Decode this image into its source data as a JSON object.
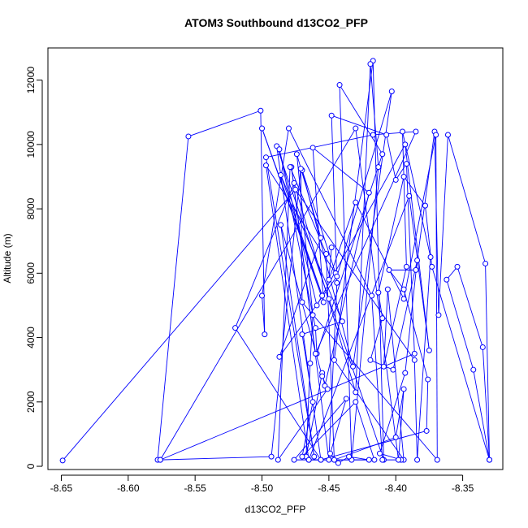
{
  "chart_data": {
    "type": "line",
    "title": "ATOM3 Southbound d13CO2_PFP",
    "xlabel": "d13CO2_PFP",
    "ylabel": "Altitude (m)",
    "xlim": [
      -8.66,
      -8.32
    ],
    "ylim": [
      -100,
      13000
    ],
    "x_ticks": [
      -8.65,
      -8.6,
      -8.55,
      -8.5,
      -8.45,
      -8.4,
      -8.35
    ],
    "x_tick_labels": [
      "-8.65",
      "-8.60",
      "-8.55",
      "-8.50",
      "-8.45",
      "-8.40",
      "-8.35"
    ],
    "y_ticks": [
      0,
      2000,
      4000,
      6000,
      8000,
      10000,
      12000
    ],
    "y_tick_labels": [
      "0",
      "2000",
      "4000",
      "6000",
      "8000",
      "10000",
      "12000"
    ],
    "grid": false,
    "series": [
      {
        "color": "#0000ff",
        "marker": "open-circle",
        "points": [
          [
            -8.649,
            180
          ],
          [
            -8.475,
            8600
          ],
          [
            -8.386,
            3300
          ],
          [
            -8.384,
            200
          ],
          [
            -8.374,
            6500
          ],
          [
            -8.395,
            10400
          ],
          [
            -8.392,
            6200
          ],
          [
            -8.409,
            3100
          ],
          [
            -8.406,
            5500
          ],
          [
            -8.394,
            200
          ],
          [
            -8.446,
            3300
          ],
          [
            -8.417,
            12600
          ],
          [
            -8.409,
            200
          ],
          [
            -8.45,
            5200
          ],
          [
            -8.489,
            9950
          ],
          [
            -8.456,
            200
          ],
          [
            -8.52,
            4300
          ],
          [
            -8.476,
            8800
          ],
          [
            -8.43,
            2300
          ],
          [
            -8.419,
            12500
          ],
          [
            -8.413,
            9300
          ],
          [
            -8.433,
            200
          ],
          [
            -8.442,
            11850
          ],
          [
            -8.41,
            9700
          ],
          [
            -8.459,
            3500
          ],
          [
            -8.46,
            4300
          ],
          [
            -8.487,
            9850
          ],
          [
            -8.459,
            5000
          ],
          [
            -8.393,
            10000
          ],
          [
            -8.375,
            3600
          ],
          [
            -8.39,
            8400
          ],
          [
            -8.465,
            200
          ],
          [
            -8.497,
            9350
          ],
          [
            -8.445,
            6000
          ],
          [
            -8.47,
            9200
          ],
          [
            -8.432,
            3100
          ],
          [
            -8.403,
            11650
          ],
          [
            -8.444,
            5900
          ],
          [
            -8.487,
            3400
          ],
          [
            -8.456,
            7100
          ],
          [
            -8.474,
            9700
          ],
          [
            -8.462,
            4700
          ],
          [
            -8.464,
            3200
          ],
          [
            -8.467,
            300
          ],
          [
            -8.455,
            2900
          ],
          [
            -8.453,
            2500
          ],
          [
            -8.42,
            8500
          ],
          [
            -8.462,
            9900
          ],
          [
            -8.454,
            5100
          ],
          [
            -8.5,
            10500
          ],
          [
            -8.455,
            5300
          ],
          [
            -8.486,
            9050
          ],
          [
            -8.44,
            4500
          ],
          [
            -8.47,
            4100
          ],
          [
            -8.462,
            2000
          ],
          [
            -8.47,
            300
          ],
          [
            -8.43,
            2000
          ],
          [
            -8.416,
            200
          ],
          [
            -8.476,
            200
          ],
          [
            -8.437,
            2100
          ],
          [
            -8.449,
            400
          ],
          [
            -8.443,
            100
          ],
          [
            -8.435,
            300
          ],
          [
            -8.42,
            200
          ],
          [
            -8.465,
            200
          ],
          [
            -8.456,
            200
          ],
          [
            -8.377,
            1100
          ],
          [
            -8.376,
            2700
          ],
          [
            -8.394,
            5500
          ],
          [
            -8.405,
            6100
          ],
          [
            -8.385,
            6100
          ],
          [
            -8.371,
            10400
          ],
          [
            -8.368,
            4700
          ],
          [
            -8.361,
            10300
          ],
          [
            -8.333,
            6300
          ],
          [
            -8.33,
            200
          ],
          [
            -8.335,
            3700
          ],
          [
            -8.354,
            6200
          ],
          [
            -8.362,
            5800
          ],
          [
            -8.342,
            3000
          ],
          [
            -8.33,
            200
          ],
          [
            -8.373,
            6200
          ],
          [
            -8.378,
            8100
          ],
          [
            -8.394,
            9000
          ],
          [
            -8.413,
            5400
          ],
          [
            -8.41,
            4600
          ],
          [
            -8.419,
            3300
          ],
          [
            -8.402,
            3000
          ],
          [
            -8.384,
            6400
          ],
          [
            -8.393,
            2900
          ],
          [
            -8.412,
            400
          ],
          [
            -8.396,
            200
          ],
          [
            -8.41,
            200
          ],
          [
            -8.418,
            5300
          ],
          [
            -8.48,
            10500
          ],
          [
            -8.5,
            5300
          ],
          [
            -8.498,
            4100
          ],
          [
            -8.501,
            11050
          ],
          [
            -8.555,
            10250
          ],
          [
            -8.578,
            200
          ],
          [
            -8.576,
            200
          ],
          [
            -8.386,
            3500
          ],
          [
            -8.392,
            9400
          ],
          [
            -8.4,
            8900
          ],
          [
            -8.407,
            10300
          ],
          [
            -8.448,
            10900
          ],
          [
            -8.444,
            5700
          ],
          [
            -8.45,
            200
          ],
          [
            -8.478,
            9300
          ],
          [
            -8.46,
            3500
          ],
          [
            -8.385,
            10400
          ],
          [
            -8.417,
            10300
          ],
          [
            -8.497,
            9600
          ],
          [
            -8.461,
            300
          ],
          [
            -8.486,
            7500
          ],
          [
            -8.455,
            2800
          ],
          [
            -8.451,
            2400
          ],
          [
            -8.488,
            200
          ],
          [
            -8.479,
            9300
          ],
          [
            -8.452,
            6600
          ],
          [
            -8.446,
            200
          ],
          [
            -8.4,
            900
          ],
          [
            -8.394,
            2400
          ],
          [
            -8.398,
            200
          ],
          [
            -8.43,
            10500
          ],
          [
            -8.576,
            200
          ],
          [
            -8.493,
            300
          ],
          [
            -8.471,
            9250
          ],
          [
            -8.47,
            5100
          ],
          [
            -8.369,
            200
          ],
          [
            -8.37,
            10300
          ],
          [
            -8.394,
            5200
          ],
          [
            -8.43,
            8200
          ],
          [
            -8.45,
            5800
          ],
          [
            -8.448,
            6800
          ]
        ]
      }
    ]
  }
}
